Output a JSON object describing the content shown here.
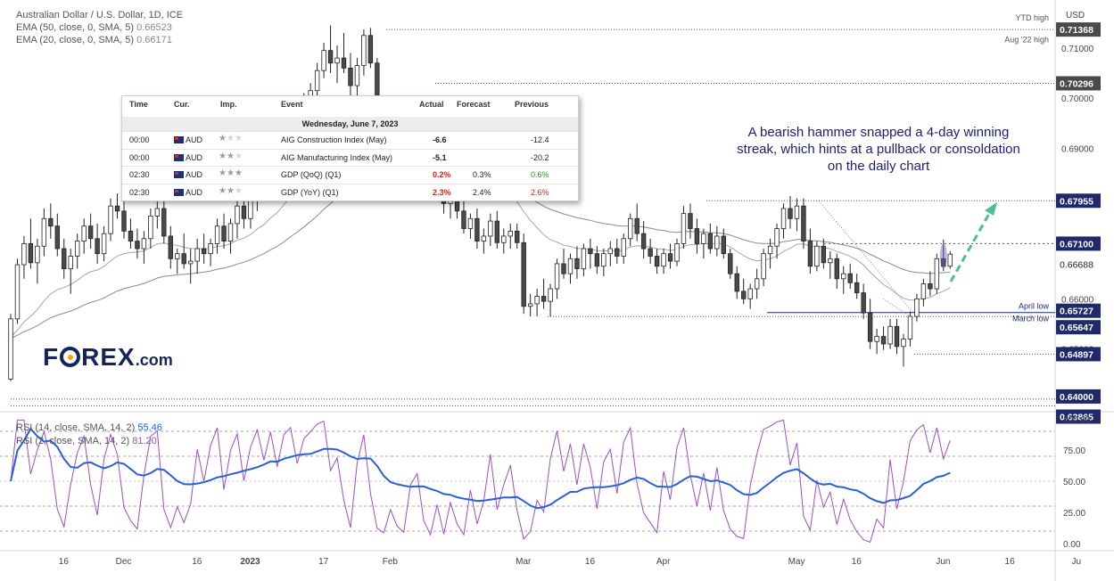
{
  "chart_data": {
    "type": "candlestick",
    "title": "Australian Dollar / U.S. Dollar, 1D, ICE",
    "currency_label": "USD",
    "price_axis": {
      "range": [
        0.6375,
        0.7185
      ],
      "ticks": [
        "0.71000",
        "0.70000",
        "0.69000",
        "0.66000",
        "0.65000",
        "0.64000"
      ]
    },
    "x_axis": {
      "ticks": [
        {
          "label": "16",
          "slot": 5
        },
        {
          "label": "Dec",
          "slot": 14
        },
        {
          "label": "16",
          "slot": 25
        },
        {
          "label": "2023",
          "slot": 33
        },
        {
          "label": "17",
          "slot": 44
        },
        {
          "label": "Feb",
          "slot": 54
        },
        {
          "label": "Mar",
          "slot": 74
        },
        {
          "label": "16",
          "slot": 84
        },
        {
          "label": "Apr",
          "slot": 95
        },
        {
          "label": "May",
          "slot": 115
        },
        {
          "label": "16",
          "slot": 124
        },
        {
          "label": "Jun",
          "slot": 137
        },
        {
          "label": "16",
          "slot": 147
        },
        {
          "label": "Ju",
          "slot": 157
        }
      ]
    },
    "price_labels": [
      {
        "text": "0.71368",
        "value": 0.71368,
        "style": "dark"
      },
      {
        "text": "0.70296",
        "value": 0.70296,
        "style": "dark"
      },
      {
        "text": "0.67955",
        "value": 0.67955,
        "style": "navy"
      },
      {
        "text": "0.67100",
        "value": 0.671,
        "style": "navy"
      },
      {
        "text": "0.66688",
        "value": 0.66688,
        "style": "plain"
      },
      {
        "text": "0.65727",
        "value": 0.65727,
        "style": "navy"
      },
      {
        "text": "0.65647",
        "value": 0.65647,
        "style": "navy"
      },
      {
        "text": "0.64897",
        "value": 0.64897,
        "style": "navy"
      },
      {
        "text": "0.64000",
        "value": 0.64,
        "style": "navy"
      },
      {
        "text": "0.63865",
        "value": 0.63865,
        "style": "navy"
      }
    ],
    "level_labels": [
      {
        "text": "YTD high",
        "value": 0.7155
      },
      {
        "text": "Aug '22 high",
        "value": 0.7125
      },
      {
        "text": "April low",
        "value": 0.6582
      },
      {
        "text": "March low",
        "value": 0.6562
      }
    ],
    "ema_legend": [
      {
        "label": "EMA (50, close, 0, SMA, 5)",
        "value": "0.66523"
      },
      {
        "label": "EMA (20, close, 0, SMA, 5)",
        "value": "0.66171"
      }
    ],
    "candles": [
      [
        0.644,
        0.657,
        0.6436,
        0.656
      ],
      [
        0.656,
        0.668,
        0.655,
        0.6668
      ],
      [
        0.6668,
        0.6725,
        0.664,
        0.671
      ],
      [
        0.671,
        0.676,
        0.666,
        0.6672
      ],
      [
        0.6672,
        0.672,
        0.663,
        0.6705
      ],
      [
        0.6705,
        0.678,
        0.6685,
        0.676
      ],
      [
        0.676,
        0.679,
        0.672,
        0.6745
      ],
      [
        0.6745,
        0.677,
        0.6685,
        0.67
      ],
      [
        0.67,
        0.672,
        0.664,
        0.666
      ],
      [
        0.666,
        0.67,
        0.661,
        0.6685
      ],
      [
        0.6685,
        0.673,
        0.666,
        0.6715
      ],
      [
        0.6715,
        0.676,
        0.669,
        0.6745
      ],
      [
        0.6745,
        0.677,
        0.67,
        0.672
      ],
      [
        0.672,
        0.675,
        0.667,
        0.669
      ],
      [
        0.669,
        0.6745,
        0.6675,
        0.673
      ],
      [
        0.673,
        0.68,
        0.6715,
        0.6785
      ],
      [
        0.6785,
        0.681,
        0.676,
        0.6775
      ],
      [
        0.6775,
        0.68,
        0.672,
        0.6735
      ],
      [
        0.6735,
        0.676,
        0.67,
        0.6715
      ],
      [
        0.6715,
        0.674,
        0.668,
        0.67
      ],
      [
        0.67,
        0.6735,
        0.667,
        0.672
      ],
      [
        0.672,
        0.678,
        0.67,
        0.6765
      ],
      [
        0.6765,
        0.68,
        0.674,
        0.678
      ],
      [
        0.678,
        0.6795,
        0.671,
        0.6725
      ],
      [
        0.6725,
        0.6745,
        0.666,
        0.668
      ],
      [
        0.668,
        0.67,
        0.665,
        0.669
      ],
      [
        0.669,
        0.673,
        0.666,
        0.667
      ],
      [
        0.667,
        0.67,
        0.663,
        0.6675
      ],
      [
        0.6675,
        0.672,
        0.665,
        0.67
      ],
      [
        0.67,
        0.673,
        0.667,
        0.669
      ],
      [
        0.669,
        0.672,
        0.6665,
        0.671
      ],
      [
        0.671,
        0.676,
        0.669,
        0.6745
      ],
      [
        0.6745,
        0.677,
        0.67,
        0.6715
      ],
      [
        0.6715,
        0.676,
        0.669,
        0.675
      ],
      [
        0.675,
        0.68,
        0.672,
        0.6785
      ],
      [
        0.6785,
        0.6815,
        0.674,
        0.676
      ],
      [
        0.676,
        0.681,
        0.674,
        0.6795
      ],
      [
        0.6795,
        0.686,
        0.6775,
        0.6845
      ],
      [
        0.6845,
        0.688,
        0.681,
        0.683
      ],
      [
        0.683,
        0.69,
        0.682,
        0.689
      ],
      [
        0.689,
        0.692,
        0.685,
        0.687
      ],
      [
        0.687,
        0.695,
        0.686,
        0.6935
      ],
      [
        0.6935,
        0.699,
        0.692,
        0.6975
      ],
      [
        0.6975,
        0.7,
        0.6945,
        0.6955
      ],
      [
        0.6955,
        0.701,
        0.694,
        0.6995
      ],
      [
        0.6995,
        0.703,
        0.6965,
        0.7015
      ],
      [
        0.7015,
        0.707,
        0.699,
        0.7055
      ],
      [
        0.7055,
        0.711,
        0.704,
        0.7095
      ],
      [
        0.7095,
        0.7145,
        0.705,
        0.707
      ],
      [
        0.707,
        0.7105,
        0.703,
        0.708
      ],
      [
        0.708,
        0.713,
        0.705,
        0.706
      ],
      [
        0.706,
        0.709,
        0.7005,
        0.7025
      ],
      [
        0.7025,
        0.708,
        0.7,
        0.7065
      ],
      [
        0.7065,
        0.7137,
        0.7045,
        0.7125
      ],
      [
        0.7125,
        0.714,
        0.706,
        0.707
      ],
      [
        0.707,
        0.708,
        0.694,
        0.6955
      ],
      [
        0.6955,
        0.699,
        0.69,
        0.692
      ],
      [
        0.692,
        0.695,
        0.687,
        0.6935
      ],
      [
        0.6935,
        0.696,
        0.688,
        0.69
      ],
      [
        0.69,
        0.6915,
        0.686,
        0.688
      ],
      [
        0.688,
        0.692,
        0.685,
        0.69
      ],
      [
        0.69,
        0.693,
        0.687,
        0.6905
      ],
      [
        0.6905,
        0.692,
        0.686,
        0.6875
      ],
      [
        0.6875,
        0.6895,
        0.682,
        0.684
      ],
      [
        0.684,
        0.687,
        0.68,
        0.685
      ],
      [
        0.685,
        0.6865,
        0.677,
        0.679
      ],
      [
        0.679,
        0.682,
        0.676,
        0.6805
      ],
      [
        0.6805,
        0.683,
        0.676,
        0.6775
      ],
      [
        0.6775,
        0.68,
        0.673,
        0.674
      ],
      [
        0.674,
        0.677,
        0.672,
        0.676
      ],
      [
        0.676,
        0.678,
        0.67,
        0.6715
      ],
      [
        0.6715,
        0.674,
        0.669,
        0.6725
      ],
      [
        0.6725,
        0.677,
        0.6705,
        0.6755
      ],
      [
        0.6755,
        0.6775,
        0.67,
        0.6712
      ],
      [
        0.6712,
        0.674,
        0.669,
        0.6725
      ],
      [
        0.6725,
        0.675,
        0.67,
        0.6735
      ],
      [
        0.6735,
        0.675,
        0.67,
        0.6712
      ],
      [
        0.6712,
        0.673,
        0.657,
        0.6585
      ],
      [
        0.6585,
        0.661,
        0.6565,
        0.659
      ],
      [
        0.659,
        0.662,
        0.6565,
        0.6605
      ],
      [
        0.6605,
        0.664,
        0.658,
        0.6595
      ],
      [
        0.6595,
        0.663,
        0.6565,
        0.662
      ],
      [
        0.662,
        0.668,
        0.66,
        0.667
      ],
      [
        0.667,
        0.67,
        0.664,
        0.665
      ],
      [
        0.665,
        0.669,
        0.663,
        0.668
      ],
      [
        0.668,
        0.6705,
        0.664,
        0.666
      ],
      [
        0.666,
        0.671,
        0.6645,
        0.67
      ],
      [
        0.67,
        0.672,
        0.666,
        0.669
      ],
      [
        0.669,
        0.6705,
        0.665,
        0.6665
      ],
      [
        0.6665,
        0.67,
        0.6645,
        0.669
      ],
      [
        0.669,
        0.6715,
        0.6665,
        0.67
      ],
      [
        0.67,
        0.672,
        0.667,
        0.6685
      ],
      [
        0.6685,
        0.673,
        0.667,
        0.672
      ],
      [
        0.672,
        0.677,
        0.6705,
        0.676
      ],
      [
        0.676,
        0.679,
        0.6715,
        0.673
      ],
      [
        0.673,
        0.6755,
        0.668,
        0.67
      ],
      [
        0.67,
        0.672,
        0.667,
        0.6685
      ],
      [
        0.6685,
        0.67,
        0.665,
        0.6665
      ],
      [
        0.6665,
        0.67,
        0.665,
        0.669
      ],
      [
        0.669,
        0.671,
        0.666,
        0.6675
      ],
      [
        0.6675,
        0.672,
        0.6665,
        0.671
      ],
      [
        0.671,
        0.6785,
        0.67,
        0.677
      ],
      [
        0.677,
        0.679,
        0.672,
        0.674
      ],
      [
        0.674,
        0.676,
        0.669,
        0.671
      ],
      [
        0.671,
        0.674,
        0.668,
        0.673
      ],
      [
        0.673,
        0.675,
        0.669,
        0.67
      ],
      [
        0.67,
        0.6745,
        0.6685,
        0.6725
      ],
      [
        0.6725,
        0.674,
        0.668,
        0.669
      ],
      [
        0.669,
        0.67,
        0.664,
        0.665
      ],
      [
        0.665,
        0.6665,
        0.66,
        0.6615
      ],
      [
        0.6615,
        0.664,
        0.659,
        0.66
      ],
      [
        0.66,
        0.663,
        0.658,
        0.662
      ],
      [
        0.662,
        0.666,
        0.66,
        0.664
      ],
      [
        0.664,
        0.67,
        0.6625,
        0.669
      ],
      [
        0.669,
        0.672,
        0.666,
        0.6705
      ],
      [
        0.6705,
        0.675,
        0.668,
        0.674
      ],
      [
        0.674,
        0.679,
        0.672,
        0.678
      ],
      [
        0.678,
        0.6805,
        0.674,
        0.676
      ],
      [
        0.676,
        0.68,
        0.6735,
        0.6785
      ],
      [
        0.6785,
        0.68,
        0.67,
        0.6715
      ],
      [
        0.6715,
        0.674,
        0.665,
        0.6665
      ],
      [
        0.6665,
        0.6715,
        0.6655,
        0.6705
      ],
      [
        0.6705,
        0.672,
        0.666,
        0.6672
      ],
      [
        0.6672,
        0.6695,
        0.664,
        0.668
      ],
      [
        0.668,
        0.669,
        0.662,
        0.664
      ],
      [
        0.664,
        0.6665,
        0.661,
        0.665
      ],
      [
        0.665,
        0.667,
        0.662,
        0.6632
      ],
      [
        0.6632,
        0.665,
        0.66,
        0.6612
      ],
      [
        0.6612,
        0.663,
        0.656,
        0.6572
      ],
      [
        0.6572,
        0.66,
        0.65,
        0.6515
      ],
      [
        0.6515,
        0.654,
        0.649,
        0.6525
      ],
      [
        0.6525,
        0.6545,
        0.6498,
        0.651
      ],
      [
        0.651,
        0.656,
        0.65,
        0.6545
      ],
      [
        0.6545,
        0.656,
        0.649,
        0.6505
      ],
      [
        0.6505,
        0.653,
        0.6465,
        0.652
      ],
      [
        0.652,
        0.6575,
        0.6505,
        0.6565
      ],
      [
        0.6565,
        0.661,
        0.6555,
        0.66
      ],
      [
        0.66,
        0.664,
        0.6585,
        0.663
      ],
      [
        0.663,
        0.6655,
        0.6605,
        0.662
      ],
      [
        0.662,
        0.669,
        0.661,
        0.668
      ],
      [
        0.668,
        0.6718,
        0.6655,
        0.6665
      ],
      [
        0.6665,
        0.6695,
        0.666,
        0.6689
      ]
    ],
    "ema_series": [
      {
        "name": "EMA (50, close, 0, SMA, 5)",
        "color": "#8a8a8a"
      },
      {
        "name": "EMA (20, close, 0, SMA, 5)",
        "color": "#a6a6a6"
      }
    ],
    "rsi_panel": {
      "range": [
        0,
        100
      ],
      "ticks": [
        "100.00",
        "75.00",
        "50.00",
        "25.00",
        "0.00"
      ],
      "dashed_levels": [
        90,
        70,
        30,
        10
      ],
      "series": [
        {
          "name": "RSI (14, close, SMA, 14, 2)",
          "value": "55.46",
          "color": "#2b5fd9"
        },
        {
          "name": "RSI (2, close, SMA, 14, 2)",
          "value": "81.20",
          "color": "#9c4dcc"
        }
      ]
    },
    "annotation": "A bearish hammer snapped a 4-day winning streak, which hints at a pullback or consoldation on the daily chart"
  },
  "calendar": {
    "headers": [
      "Time",
      "Cur.",
      "Imp.",
      "Event",
      "Actual",
      "Forecast",
      "Previous"
    ],
    "date": "Wednesday, June 7, 2023",
    "rows": [
      {
        "time": "00:00",
        "cur": "AUD",
        "imp": 1,
        "event": "AIG Construction Index (May)",
        "actual": "-6.6",
        "actual_color": "black",
        "forecast": "",
        "previous": "-12.4",
        "previous_color": "black"
      },
      {
        "time": "00:00",
        "cur": "AUD",
        "imp": 2,
        "event": "AIG Manufacturing Index (May)",
        "actual": "-5.1",
        "actual_color": "black",
        "forecast": "",
        "previous": "-20.2",
        "previous_color": "black"
      },
      {
        "time": "02:30",
        "cur": "AUD",
        "imp": 3,
        "event": "GDP (QoQ) (Q1)",
        "actual": "0.2%",
        "actual_color": "red",
        "forecast": "0.3%",
        "previous": "0.6%",
        "previous_color": "green"
      },
      {
        "time": "02:30",
        "cur": "AUD",
        "imp": 2,
        "event": "GDP (YoY) (Q1)",
        "actual": "2.3%",
        "actual_color": "red",
        "forecast": "2.4%",
        "previous": "2.6%",
        "previous_color": "red"
      }
    ]
  },
  "logo": {
    "brand": "FOREX",
    "suffix": ".com",
    "prefix": "F",
    "rest": "REX"
  }
}
